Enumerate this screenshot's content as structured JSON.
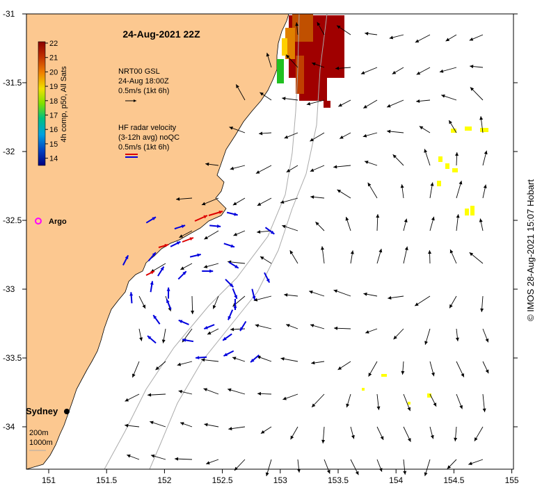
{
  "title": "24-Aug-2021 22Z",
  "legend_gsl": {
    "line1": "NRT00 GSL",
    "line2": "24-Aug 18:00Z",
    "line3": "0.5m/s (1kt 6h)"
  },
  "legend_hf": {
    "line1": "HF radar velocity",
    "line2": "(3-12h avg) noQC",
    "line3": "0.5m/s (1kt 6h)"
  },
  "colorbar": {
    "label": "4h comp, p50, All Sats",
    "ticks": [
      "22",
      "21",
      "20",
      "19",
      "18",
      "17",
      "16",
      "15",
      "14"
    ],
    "range": [
      14,
      22
    ]
  },
  "x_ticks": [
    "151",
    "151.5",
    "152",
    "152.5",
    "153",
    "153.5",
    "154",
    "154.5",
    "155"
  ],
  "y_ticks": [
    "-31",
    "-31.5",
    "-32",
    "-32.5",
    "-33",
    "-33.5",
    "-34"
  ],
  "places": {
    "argo": "Argo",
    "sydney": "Sydney"
  },
  "isobaths": {
    "line1": "200m",
    "line2": "1000m"
  },
  "credit": "© IMOS 28-Aug-2021 15:07 Hobart",
  "colors": {
    "land": "#fcc890",
    "ocean": "#ffffff",
    "gsl_arrow": "#000000",
    "hf_arrow": "#0000dd",
    "hf_arrow_alt": "#dd0000",
    "argo": "#ff00ff",
    "sst_cluster": "#ffff00"
  }
}
